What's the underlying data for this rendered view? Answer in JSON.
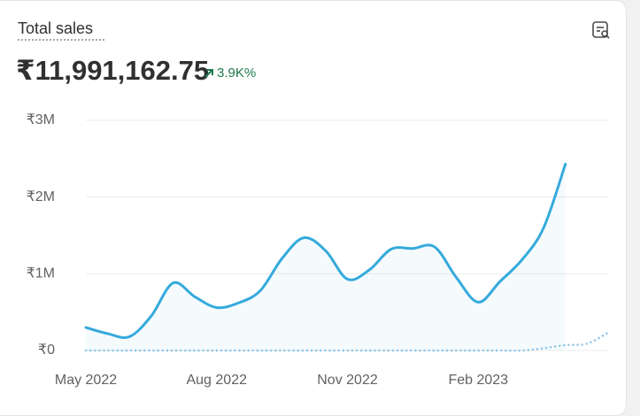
{
  "chart_data": {
    "type": "line",
    "title": "Total sales",
    "total": "₹11,991,162.75",
    "change": "3.9K%",
    "categories": [
      "May 2022",
      null,
      null,
      null,
      null,
      null,
      "Aug 2022",
      null,
      null,
      null,
      null,
      null,
      "Nov 2022",
      null,
      null,
      null,
      null,
      null,
      "Feb 2023",
      null,
      null,
      null,
      null,
      null,
      null
    ],
    "series": [
      {
        "color": "#35aadc",
        "values": [
          0.3,
          0.22,
          0.18,
          0.45,
          0.88,
          0.7,
          0.56,
          0.62,
          0.78,
          1.2,
          1.47,
          1.3,
          0.93,
          1.05,
          1.32,
          1.33,
          1.35,
          0.95,
          0.63,
          0.9,
          1.18,
          1.6,
          2.43,
          null,
          null
        ]
      },
      {
        "color": "#8fc6e8",
        "values": [
          0,
          0,
          0,
          0,
          0,
          0,
          0,
          0,
          0,
          0,
          0,
          0,
          0,
          0,
          0,
          0,
          0,
          0,
          0,
          0,
          0,
          0.03,
          0.07,
          0.09,
          0.24
        ]
      }
    ],
    "ylim": [
      0,
      3
    ],
    "yticks": [
      {
        "value": 0,
        "label": "₹0"
      },
      {
        "value": 1,
        "label": "₹1M"
      },
      {
        "value": 2,
        "label": "₹2M"
      },
      {
        "value": 3,
        "label": "₹3M"
      }
    ],
    "grid": true
  }
}
